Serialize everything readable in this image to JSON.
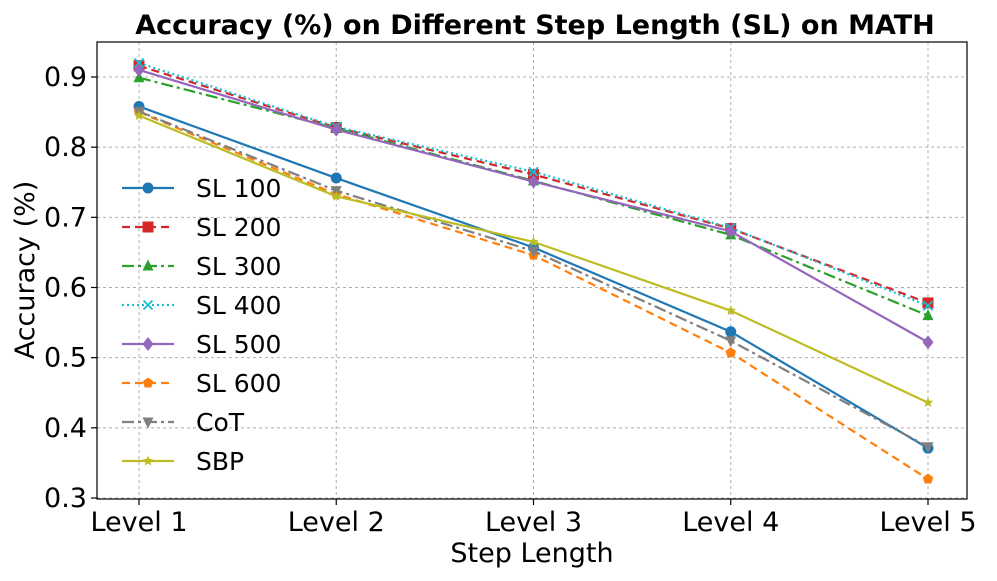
{
  "chart_data": {
    "type": "line",
    "title": "Accuracy (%) on Different Step Length (SL) on MATH",
    "xlabel": "Step Length",
    "ylabel": "Accuracy (%)",
    "categories": [
      "Level 1",
      "Level 2",
      "Level 3",
      "Level 4",
      "Level 5"
    ],
    "ylim": [
      0.3,
      0.95
    ],
    "yticks": [
      0.3,
      0.4,
      0.5,
      0.6,
      0.7,
      0.8,
      0.9
    ],
    "ytick_labels": [
      "0.3",
      "0.4",
      "0.5",
      "0.6",
      "0.7",
      "0.8",
      "0.9"
    ],
    "grid": true,
    "legend_position": "left",
    "series": [
      {
        "name": "SL 100",
        "values": [
          0.858,
          0.756,
          0.657,
          0.537,
          0.371
        ],
        "color": "#1f77b4",
        "dash": "solid",
        "marker": "circle"
      },
      {
        "name": "SL 200",
        "values": [
          0.916,
          0.828,
          0.761,
          0.684,
          0.578
        ],
        "color": "#d62728",
        "dash": "dashed",
        "marker": "square"
      },
      {
        "name": "SL 300",
        "values": [
          0.899,
          0.827,
          0.752,
          0.675,
          0.56
        ],
        "color": "#2ca02c",
        "dash": "dashdot",
        "marker": "triangle"
      },
      {
        "name": "SL 400",
        "values": [
          0.92,
          0.829,
          0.765,
          0.685,
          0.574
        ],
        "color": "#17becf",
        "dash": "dotted",
        "marker": "x"
      },
      {
        "name": "SL 500",
        "values": [
          0.91,
          0.825,
          0.751,
          0.68,
          0.522
        ],
        "color": "#9467bd",
        "dash": "solid",
        "marker": "diamond"
      },
      {
        "name": "SL 600",
        "values": [
          0.85,
          0.733,
          0.646,
          0.507,
          0.327
        ],
        "color": "#ff7f0e",
        "dash": "dashed",
        "marker": "pentagon"
      },
      {
        "name": "CoT",
        "values": [
          0.851,
          0.738,
          0.652,
          0.524,
          0.373
        ],
        "color": "#7f7f7f",
        "dash": "dashdot",
        "marker": "triangle-down"
      },
      {
        "name": "SBP",
        "values": [
          0.845,
          0.73,
          0.665,
          0.567,
          0.436
        ],
        "color": "#bcbd22",
        "dash": "solid",
        "marker": "star"
      }
    ]
  }
}
